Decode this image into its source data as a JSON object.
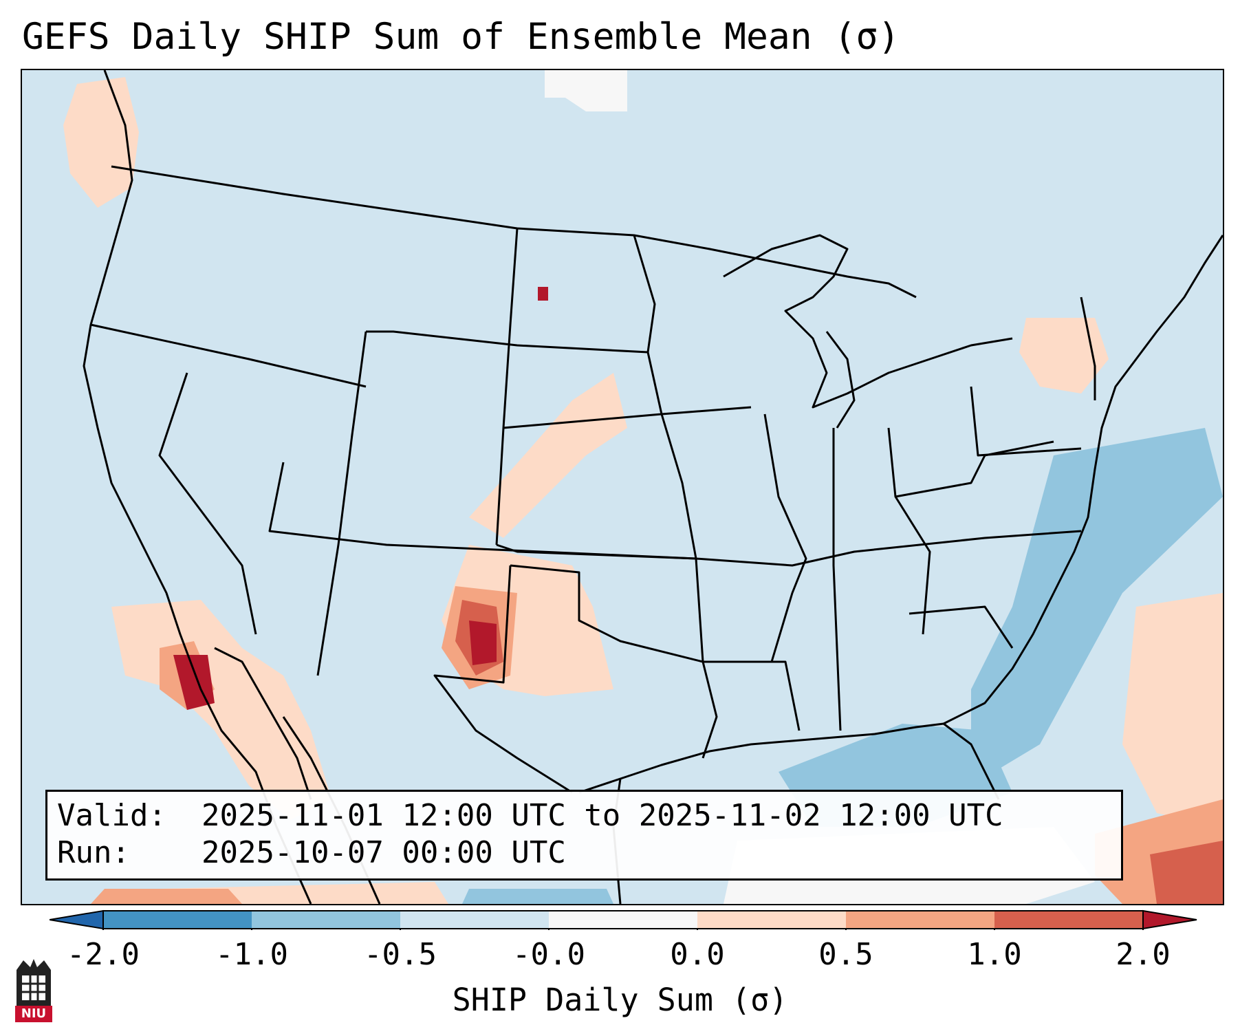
{
  "title": "GEFS Daily SHIP Sum of Ensemble Mean (σ)",
  "info": {
    "valid_label": "Valid:",
    "valid_value": "2025-11-01 12:00 UTC to 2025-11-02 12:00 UTC",
    "run_label": "Run:",
    "run_value": "2025-10-07 00:00 UTC"
  },
  "colorbar": {
    "label": "SHIP Daily Sum (σ)",
    "bins": [
      {
        "from": -2.0,
        "to": -1.0,
        "color": "#4393c3"
      },
      {
        "from": -1.0,
        "to": -0.5,
        "color": "#92c5de"
      },
      {
        "from": -0.5,
        "to": -0.0,
        "color": "#d1e5f0"
      },
      {
        "from": -0.0,
        "to": 0.0,
        "color": "#f7f7f7"
      },
      {
        "from": 0.0,
        "to": 0.5,
        "color": "#fddbc7"
      },
      {
        "from": 0.5,
        "to": 1.0,
        "color": "#f4a582"
      },
      {
        "from": 1.0,
        "to": 2.0,
        "color": "#d6604d"
      }
    ],
    "under_color": "#2166ac",
    "over_color": "#b2182b",
    "ticks": [
      "-2.0",
      "-1.0",
      "-0.5",
      "-0.0",
      "0.0",
      "0.5",
      "1.0",
      "2.0"
    ]
  },
  "map": {
    "background_value_color": "#d1e5f0",
    "outline_color": "#000000"
  },
  "logo": {
    "text": "NIU",
    "color": "#c8102e"
  }
}
